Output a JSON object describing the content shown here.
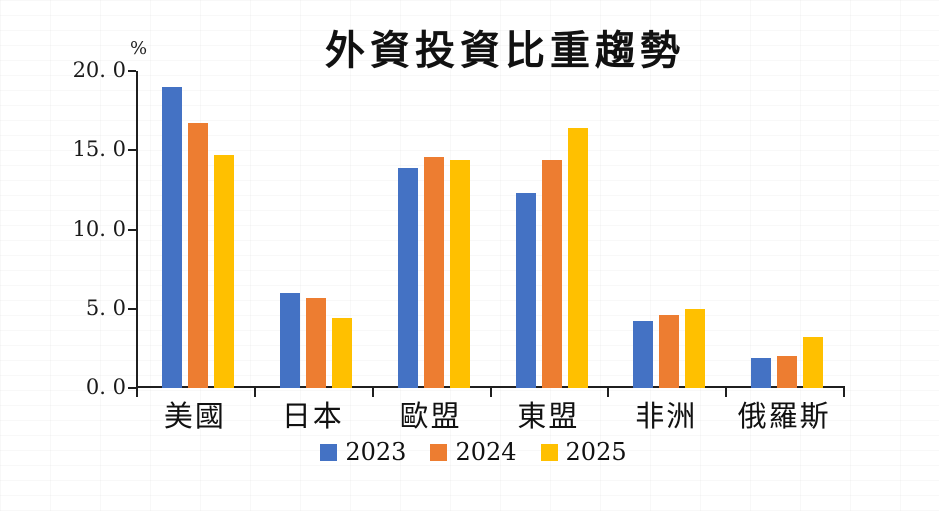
{
  "chart_data": {
    "type": "bar",
    "title": "外資投資比重趨勢",
    "ylabel": "%",
    "xlabel": "",
    "ylim": [
      0,
      20
    ],
    "yticks": [
      0,
      5,
      10,
      15,
      20
    ],
    "ytick_labels": [
      "0. 0",
      "5. 0",
      "10. 0",
      "15. 0",
      "20. 0"
    ],
    "categories": [
      "美國",
      "日本",
      "歐盟",
      "東盟",
      "非洲",
      "俄羅斯"
    ],
    "series": [
      {
        "name": "2023",
        "color": "#4472C4",
        "values": [
          19.0,
          6.0,
          13.9,
          12.3,
          4.2,
          1.9
        ]
      },
      {
        "name": "2024",
        "color": "#ED7D31",
        "values": [
          16.7,
          5.7,
          14.6,
          14.4,
          4.6,
          2.0
        ]
      },
      {
        "name": "2025",
        "color": "#FFC000",
        "values": [
          14.7,
          4.4,
          14.4,
          16.4,
          5.0,
          3.2
        ]
      }
    ],
    "legend_position": "bottom",
    "grid": false,
    "axis_color": "#1f1f1f"
  }
}
